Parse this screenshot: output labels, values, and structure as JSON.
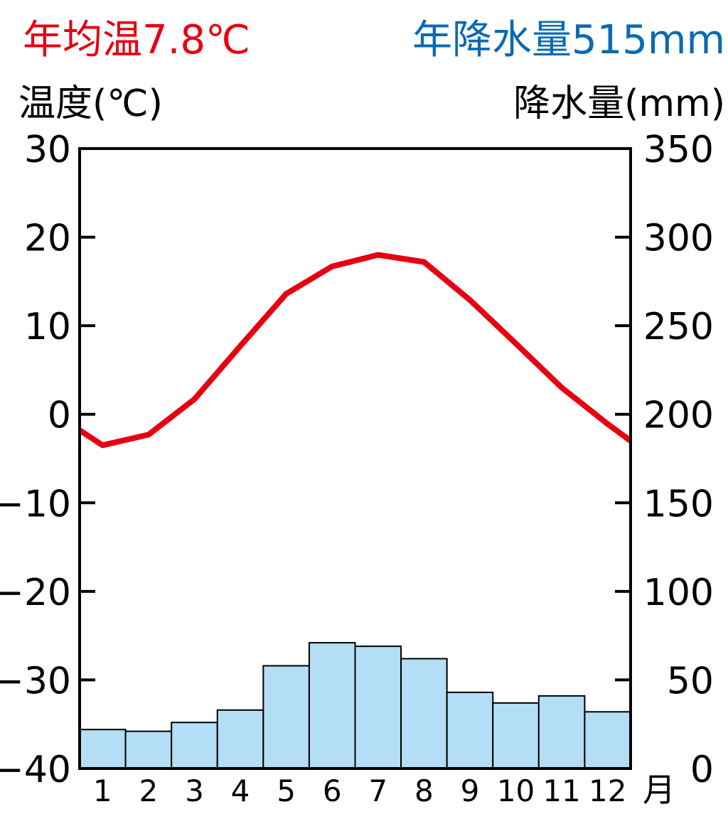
{
  "header": {
    "annual_temp_label": "年均温7.8℃",
    "annual_precip_label": "年降水量515mm",
    "left_axis_label": "温度(℃)",
    "right_axis_label": "降水量(mm)",
    "x_unit_label": "月"
  },
  "colors": {
    "temperature_line": "#e60012",
    "precip_bar_fill": "#b3def5",
    "annual_temp_text": "#e60012",
    "annual_precip_text": "#0a6ab5",
    "axis": "#000000"
  },
  "chart_data": {
    "type": "line",
    "categories": [
      "1",
      "2",
      "3",
      "4",
      "5",
      "6",
      "7",
      "8",
      "9",
      "10",
      "11",
      "12"
    ],
    "series": [
      {
        "name": "温度(℃)",
        "type": "line",
        "axis": "left",
        "values": [
          -3.5,
          -2.3,
          1.7,
          7.7,
          13.6,
          16.7,
          18,
          17.2,
          12.9,
          8,
          3,
          -1.1
        ]
      },
      {
        "name": "降水量(mm)",
        "type": "bar",
        "axis": "right",
        "values": [
          22,
          21,
          26,
          33,
          58,
          71,
          69,
          62,
          43,
          37,
          41,
          32
        ]
      }
    ],
    "y_left": {
      "label": "温度(℃)",
      "lim": [
        -40,
        30
      ],
      "ticks": [
        30,
        20,
        10,
        0,
        -10,
        -20,
        -30,
        -40
      ],
      "tick_labels": [
        "30",
        "20",
        "10",
        "0",
        "−10",
        "−20",
        "−30",
        "−40"
      ]
    },
    "y_right": {
      "label": "降水量(mm)",
      "lim": [
        0,
        350
      ],
      "ticks": [
        350,
        300,
        250,
        200,
        150,
        100,
        50,
        0
      ],
      "tick_labels": [
        "350",
        "300",
        "250",
        "200",
        "150",
        "100",
        "50",
        "0"
      ]
    },
    "line_edges": {
      "start_value": -1.8,
      "end_value": -3
    },
    "grid": false,
    "legend": "none"
  }
}
